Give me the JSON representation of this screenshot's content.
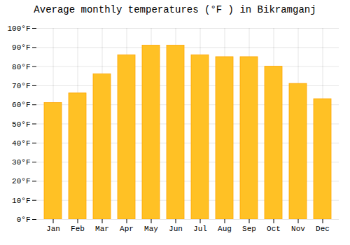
{
  "chart_data": {
    "type": "bar",
    "title": "Average monthly temperatures (°F ) in Bikramganj",
    "categories": [
      "Jan",
      "Feb",
      "Mar",
      "Apr",
      "May",
      "Jun",
      "Jul",
      "Aug",
      "Sep",
      "Oct",
      "Nov",
      "Dec"
    ],
    "values": [
      61,
      66,
      76,
      86,
      91,
      91,
      86,
      85,
      85,
      80,
      71,
      63
    ],
    "color": "#FFC125",
    "ylim": [
      0,
      100
    ],
    "yticks": [
      {
        "value": 0,
        "label": "0°F"
      },
      {
        "value": 10,
        "label": "10°F"
      },
      {
        "value": 20,
        "label": "20°F"
      },
      {
        "value": 30,
        "label": "30°F"
      },
      {
        "value": 40,
        "label": "40°F"
      },
      {
        "value": 50,
        "label": "50°F"
      },
      {
        "value": 60,
        "label": "60°F"
      },
      {
        "value": 70,
        "label": "70°F"
      },
      {
        "value": 80,
        "label": "80°F"
      },
      {
        "value": 90,
        "label": "90°F"
      },
      {
        "value": 100,
        "label": "100°F"
      }
    ],
    "grid": true
  }
}
